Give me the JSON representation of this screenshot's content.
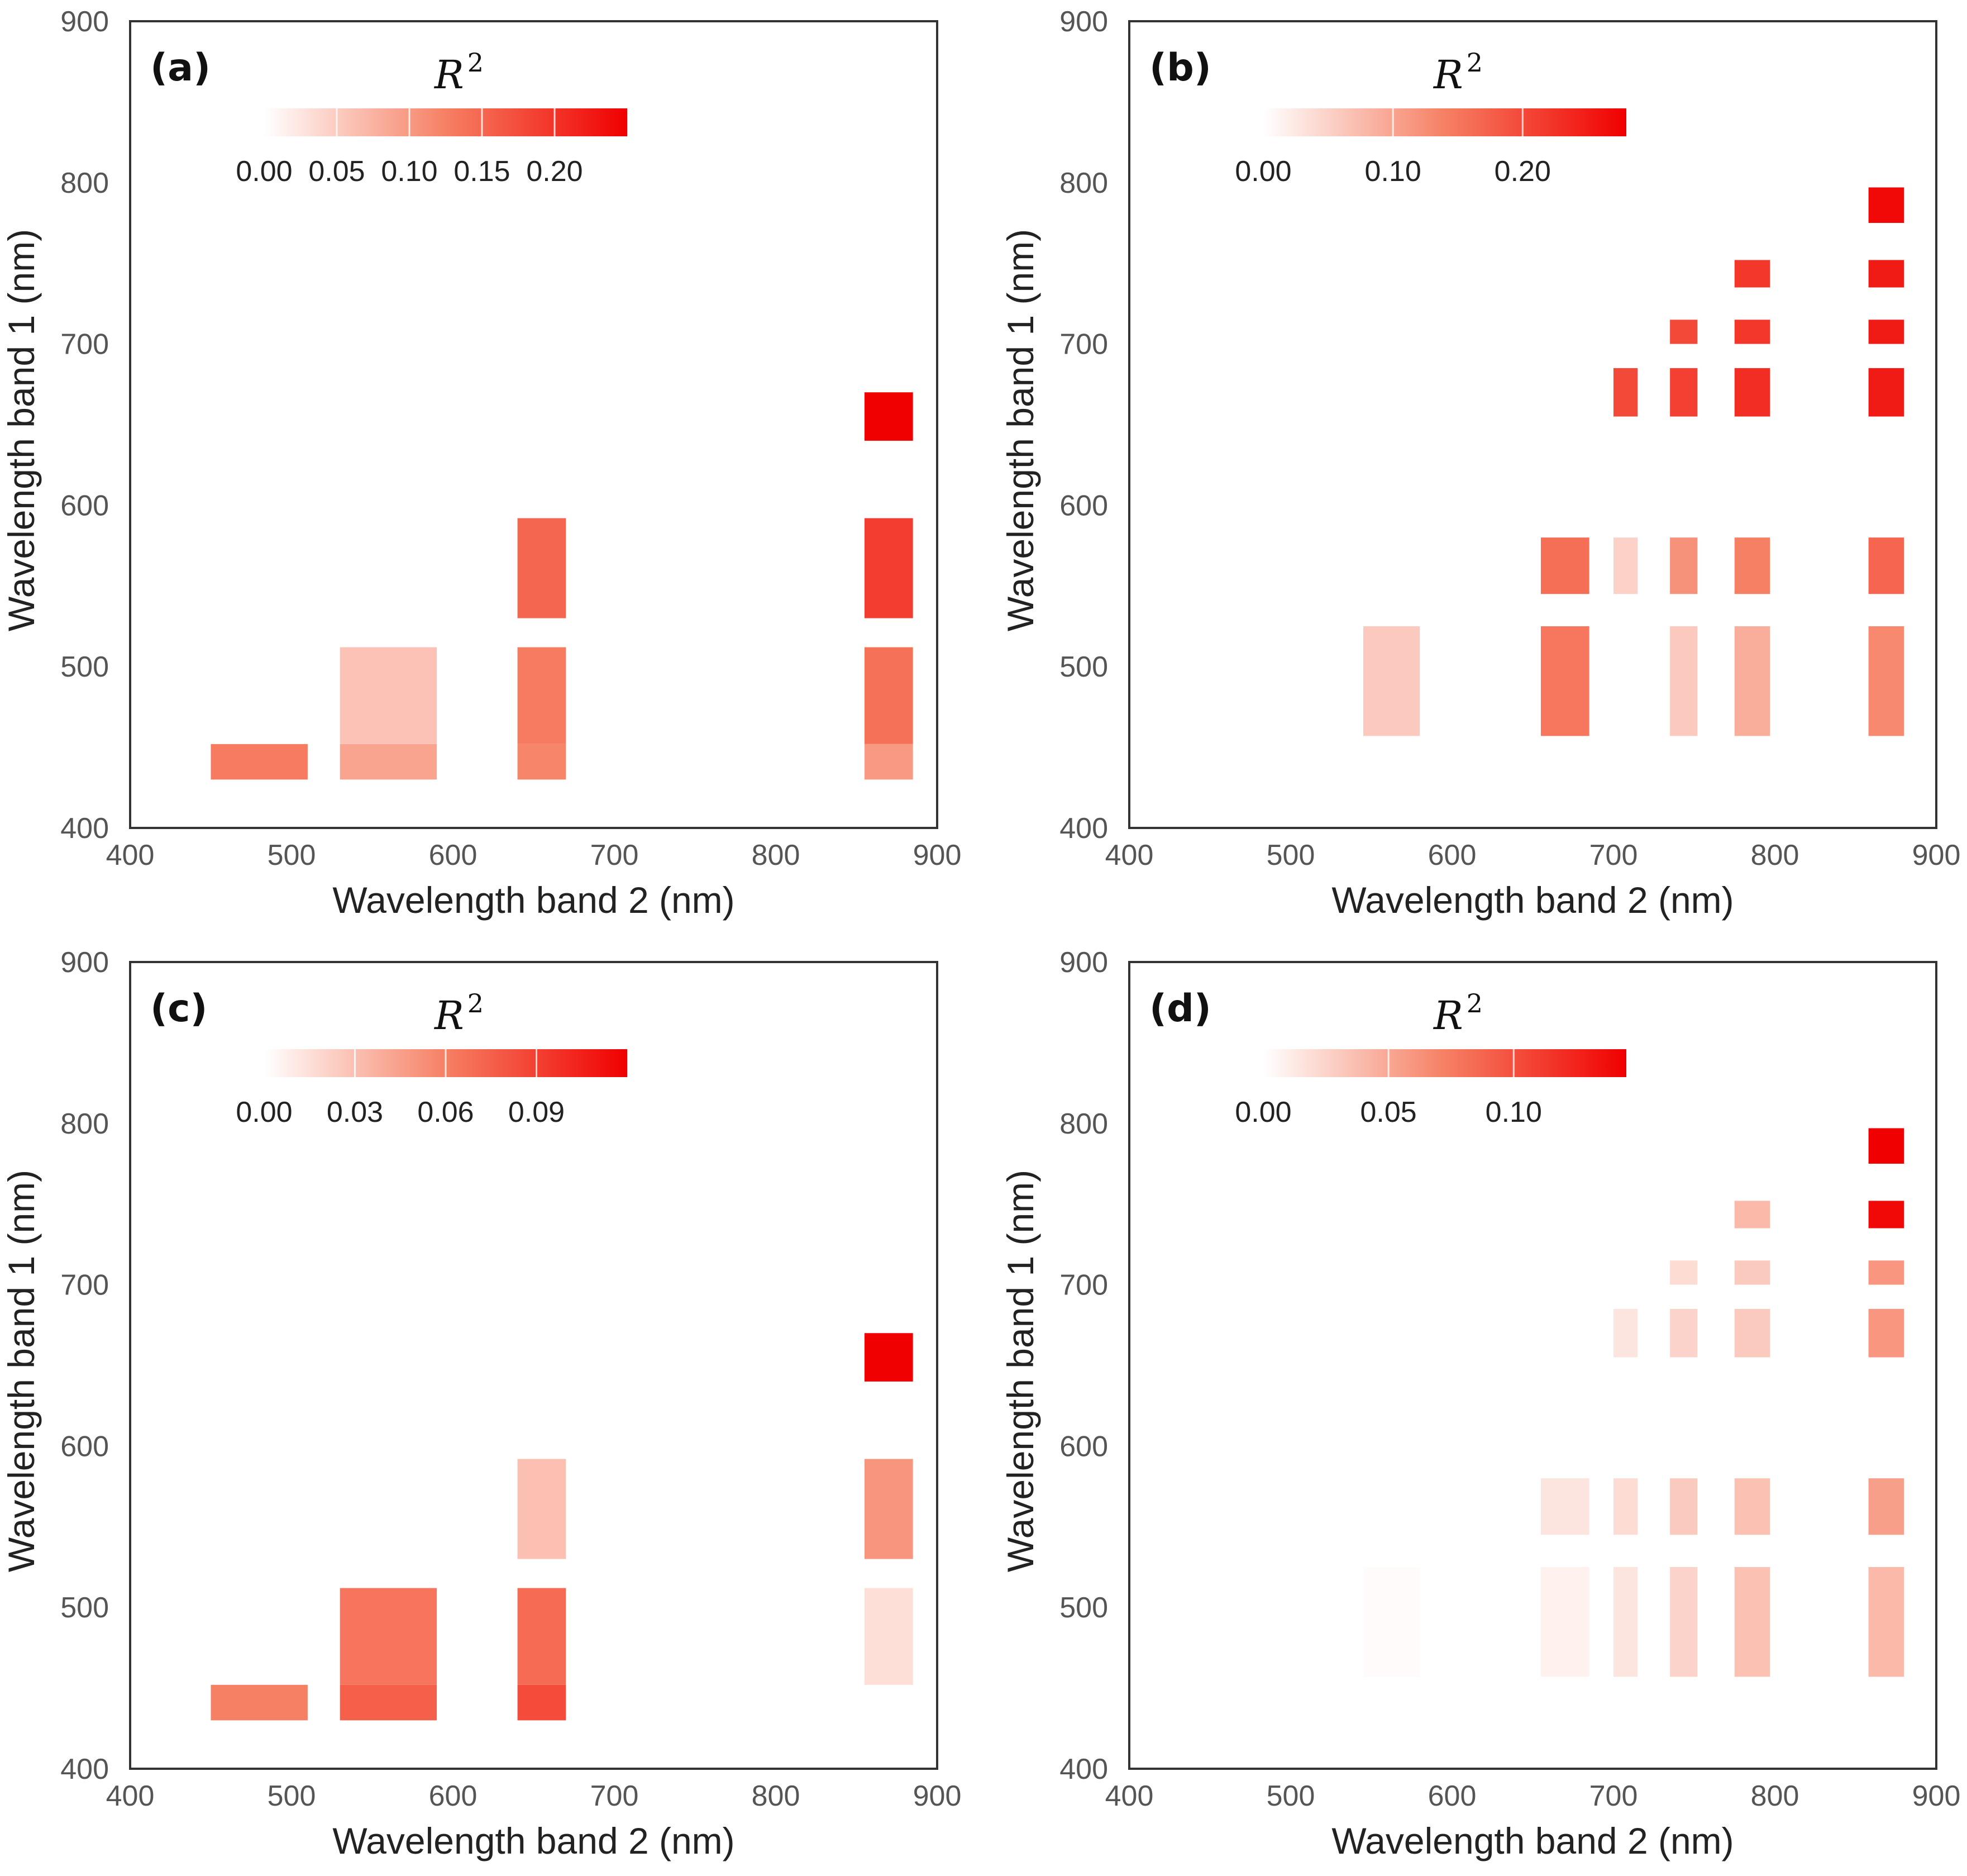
{
  "chart_data": [
    {
      "type": "heatmap",
      "panel_label": "(a)",
      "xlabel": "Wavelength band 2 (nm)",
      "ylabel": "Wavelength band 1 (nm)",
      "xlim": [
        400,
        900
      ],
      "ylim": [
        400,
        900
      ],
      "x_ticks": [
        "400",
        "500",
        "600",
        "700",
        "800",
        "900"
      ],
      "y_ticks": [
        "400",
        "500",
        "600",
        "700",
        "800",
        "900"
      ],
      "colorbar": {
        "title": "R",
        "title_sup": "2",
        "min": 0,
        "max": 0.25,
        "tick_values": [
          0,
          0.05,
          0.1,
          0.15,
          0.2
        ],
        "tick_labels": [
          "0.00",
          "0.05",
          "0.10",
          "0.15",
          "0.20"
        ]
      },
      "cells": [
        {
          "x": [
            450,
            510
          ],
          "y": [
            430,
            452
          ],
          "value": 0.13
        },
        {
          "x": [
            530,
            590
          ],
          "y": [
            430,
            452
          ],
          "value": 0.09
        },
        {
          "x": [
            530,
            590
          ],
          "y": [
            452,
            512
          ],
          "value": 0.06
        },
        {
          "x": [
            640,
            670
          ],
          "y": [
            430,
            452
          ],
          "value": 0.12
        },
        {
          "x": [
            640,
            670
          ],
          "y": [
            452,
            512
          ],
          "value": 0.13
        },
        {
          "x": [
            640,
            670
          ],
          "y": [
            530,
            592
          ],
          "value": 0.15
        },
        {
          "x": [
            855,
            885
          ],
          "y": [
            430,
            452
          ],
          "value": 0.1
        },
        {
          "x": [
            855,
            885
          ],
          "y": [
            452,
            512
          ],
          "value": 0.14
        },
        {
          "x": [
            855,
            885
          ],
          "y": [
            530,
            592
          ],
          "value": 0.19
        },
        {
          "x": [
            855,
            885
          ],
          "y": [
            640,
            670
          ],
          "value": 0.25
        }
      ]
    },
    {
      "type": "heatmap",
      "panel_label": "(b)",
      "xlabel": "Wavelength band 2 (nm)",
      "ylabel": "Wavelength band 1 (nm)",
      "xlim": [
        400,
        900
      ],
      "ylim": [
        400,
        900
      ],
      "x_ticks": [
        "400",
        "500",
        "600",
        "700",
        "800",
        "900"
      ],
      "y_ticks": [
        "400",
        "500",
        "600",
        "700",
        "800",
        "900"
      ],
      "colorbar": {
        "title": "R",
        "title_sup": "2",
        "min": 0,
        "max": 0.28,
        "tick_values": [
          0,
          0.1,
          0.2
        ],
        "tick_labels": [
          "0.00",
          "0.10",
          "0.20"
        ]
      },
      "cells": [
        {
          "x": [
            545,
            580
          ],
          "y": [
            457,
            525
          ],
          "value": 0.06
        },
        {
          "x": [
            655,
            685
          ],
          "y": [
            457,
            525
          ],
          "value": 0.15
        },
        {
          "x": [
            655,
            685
          ],
          "y": [
            545,
            580
          ],
          "value": 0.16
        },
        {
          "x": [
            700,
            715
          ],
          "y": [
            545,
            580
          ],
          "value": 0.05
        },
        {
          "x": [
            735,
            752
          ],
          "y": [
            457,
            525
          ],
          "value": 0.06
        },
        {
          "x": [
            735,
            752
          ],
          "y": [
            545,
            580
          ],
          "value": 0.12
        },
        {
          "x": [
            735,
            752
          ],
          "y": [
            655,
            685
          ],
          "value": 0.21
        },
        {
          "x": [
            735,
            752
          ],
          "y": [
            700,
            715
          ],
          "value": 0.2
        },
        {
          "x": [
            775,
            797
          ],
          "y": [
            457,
            525
          ],
          "value": 0.09
        },
        {
          "x": [
            775,
            797
          ],
          "y": [
            545,
            580
          ],
          "value": 0.14
        },
        {
          "x": [
            775,
            797
          ],
          "y": [
            655,
            685
          ],
          "value": 0.23
        },
        {
          "x": [
            775,
            797
          ],
          "y": [
            700,
            715
          ],
          "value": 0.22
        },
        {
          "x": [
            775,
            797
          ],
          "y": [
            735,
            752
          ],
          "value": 0.22
        },
        {
          "x": [
            700,
            715
          ],
          "y": [
            655,
            685
          ],
          "value": 0.2
        },
        {
          "x": [
            858,
            880
          ],
          "y": [
            457,
            525
          ],
          "value": 0.13
        },
        {
          "x": [
            858,
            880
          ],
          "y": [
            545,
            580
          ],
          "value": 0.17
        },
        {
          "x": [
            858,
            880
          ],
          "y": [
            655,
            685
          ],
          "value": 0.25
        },
        {
          "x": [
            858,
            880
          ],
          "y": [
            700,
            715
          ],
          "value": 0.25
        },
        {
          "x": [
            858,
            880
          ],
          "y": [
            735,
            752
          ],
          "value": 0.25
        },
        {
          "x": [
            858,
            880
          ],
          "y": [
            775,
            797
          ],
          "value": 0.27
        }
      ]
    },
    {
      "type": "heatmap",
      "panel_label": "(c)",
      "xlabel": "Wavelength band 2 (nm)",
      "ylabel": "Wavelength band 1 (nm)",
      "xlim": [
        400,
        900
      ],
      "ylim": [
        400,
        900
      ],
      "x_ticks": [
        "400",
        "500",
        "600",
        "700",
        "800",
        "900"
      ],
      "y_ticks": [
        "400",
        "500",
        "600",
        "700",
        "800",
        "900"
      ],
      "colorbar": {
        "title": "R",
        "title_sup": "2",
        "min": 0,
        "max": 0.12,
        "tick_values": [
          0,
          0.03,
          0.06,
          0.09
        ],
        "tick_labels": [
          "0.00",
          "0.03",
          "0.06",
          "0.09"
        ]
      },
      "cells": [
        {
          "x": [
            450,
            510
          ],
          "y": [
            430,
            452
          ],
          "value": 0.06
        },
        {
          "x": [
            530,
            590
          ],
          "y": [
            430,
            452
          ],
          "value": 0.075
        },
        {
          "x": [
            530,
            590
          ],
          "y": [
            452,
            512
          ],
          "value": 0.065
        },
        {
          "x": [
            640,
            670
          ],
          "y": [
            430,
            452
          ],
          "value": 0.085
        },
        {
          "x": [
            640,
            670
          ],
          "y": [
            452,
            512
          ],
          "value": 0.07
        },
        {
          "x": [
            640,
            670
          ],
          "y": [
            530,
            592
          ],
          "value": 0.03
        },
        {
          "x": [
            855,
            885
          ],
          "y": [
            452,
            512
          ],
          "value": 0.015
        },
        {
          "x": [
            855,
            885
          ],
          "y": [
            530,
            592
          ],
          "value": 0.05
        },
        {
          "x": [
            855,
            885
          ],
          "y": [
            640,
            670
          ],
          "value": 0.12
        }
      ]
    },
    {
      "type": "heatmap",
      "panel_label": "(d)",
      "xlabel": "Wavelength band 2 (nm)",
      "ylabel": "Wavelength band 1 (nm)",
      "xlim": [
        400,
        900
      ],
      "ylim": [
        400,
        900
      ],
      "x_ticks": [
        "400",
        "500",
        "600",
        "700",
        "800",
        "900"
      ],
      "y_ticks": [
        "400",
        "500",
        "600",
        "700",
        "800",
        "900"
      ],
      "colorbar": {
        "title": "R",
        "title_sup": "2",
        "min": 0,
        "max": 0.145,
        "tick_values": [
          0,
          0.05,
          0.1
        ],
        "tick_labels": [
          "0.00",
          "0.05",
          "0.10"
        ]
      },
      "cells": [
        {
          "x": [
            545,
            580
          ],
          "y": [
            457,
            525
          ],
          "value": 0.002
        },
        {
          "x": [
            655,
            685
          ],
          "y": [
            457,
            525
          ],
          "value": 0.008
        },
        {
          "x": [
            655,
            685
          ],
          "y": [
            545,
            580
          ],
          "value": 0.015
        },
        {
          "x": [
            700,
            715
          ],
          "y": [
            457,
            525
          ],
          "value": 0.015
        },
        {
          "x": [
            700,
            715
          ],
          "y": [
            545,
            580
          ],
          "value": 0.02
        },
        {
          "x": [
            700,
            715
          ],
          "y": [
            655,
            685
          ],
          "value": 0.015
        },
        {
          "x": [
            735,
            752
          ],
          "y": [
            457,
            525
          ],
          "value": 0.025
        },
        {
          "x": [
            735,
            752
          ],
          "y": [
            545,
            580
          ],
          "value": 0.03
        },
        {
          "x": [
            735,
            752
          ],
          "y": [
            655,
            685
          ],
          "value": 0.025
        },
        {
          "x": [
            735,
            752
          ],
          "y": [
            700,
            715
          ],
          "value": 0.02
        },
        {
          "x": [
            775,
            797
          ],
          "y": [
            457,
            525
          ],
          "value": 0.035
        },
        {
          "x": [
            775,
            797
          ],
          "y": [
            545,
            580
          ],
          "value": 0.035
        },
        {
          "x": [
            775,
            797
          ],
          "y": [
            655,
            685
          ],
          "value": 0.03
        },
        {
          "x": [
            775,
            797
          ],
          "y": [
            700,
            715
          ],
          "value": 0.03
        },
        {
          "x": [
            775,
            797
          ],
          "y": [
            735,
            752
          ],
          "value": 0.04
        },
        {
          "x": [
            858,
            880
          ],
          "y": [
            457,
            525
          ],
          "value": 0.04
        },
        {
          "x": [
            858,
            880
          ],
          "y": [
            545,
            580
          ],
          "value": 0.055
        },
        {
          "x": [
            858,
            880
          ],
          "y": [
            655,
            685
          ],
          "value": 0.06
        },
        {
          "x": [
            858,
            880
          ],
          "y": [
            700,
            715
          ],
          "value": 0.06
        },
        {
          "x": [
            858,
            880
          ],
          "y": [
            735,
            752
          ],
          "value": 0.14
        },
        {
          "x": [
            858,
            880
          ],
          "y": [
            775,
            797
          ],
          "value": 0.145
        }
      ]
    }
  ]
}
